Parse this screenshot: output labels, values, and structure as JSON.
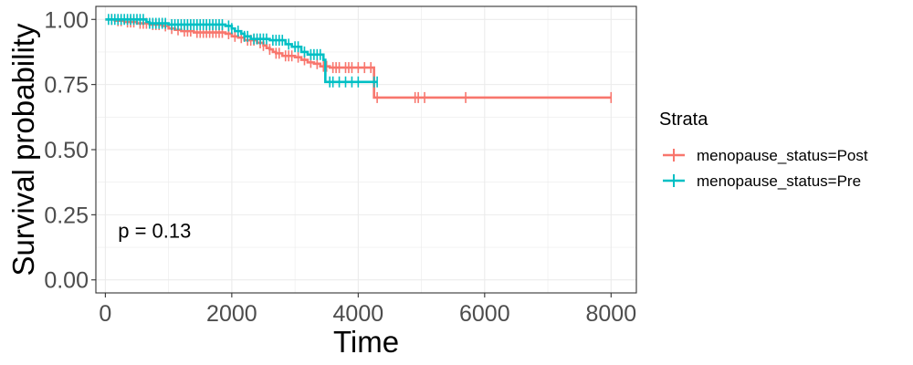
{
  "chart_data": {
    "type": "line",
    "subtype": "kaplan-meier step plot",
    "xlabel": "Time",
    "ylabel": "Survival probability",
    "xlim": [
      -150,
      8400
    ],
    "ylim": [
      -0.05,
      1.05
    ],
    "x_ticks": [
      0,
      2000,
      4000,
      6000,
      8000
    ],
    "y_ticks": [
      0.0,
      0.25,
      0.5,
      0.75,
      1.0
    ],
    "x_tick_labels": [
      "0",
      "2000",
      "4000",
      "6000",
      "8000"
    ],
    "y_tick_labels": [
      "0.00",
      "0.25",
      "0.50",
      "0.75",
      "1.00"
    ],
    "grid": true,
    "legend": {
      "title": "Strata",
      "position": "right"
    },
    "annotation": {
      "text": "p = 0.13",
      "x": 200,
      "y": 0.19
    },
    "series": [
      {
        "name": "menopause_status=Post",
        "color": "#F8766D",
        "steps": [
          [
            0,
            1.0
          ],
          [
            150,
            0.995
          ],
          [
            300,
            0.99
          ],
          [
            500,
            0.985
          ],
          [
            700,
            0.98
          ],
          [
            900,
            0.975
          ],
          [
            1000,
            0.965
          ],
          [
            1100,
            0.96
          ],
          [
            1200,
            0.955
          ],
          [
            1400,
            0.95
          ],
          [
            1900,
            0.945
          ],
          [
            2000,
            0.935
          ],
          [
            2100,
            0.93
          ],
          [
            2200,
            0.92
          ],
          [
            2400,
            0.91
          ],
          [
            2500,
            0.9
          ],
          [
            2550,
            0.89
          ],
          [
            2600,
            0.885
          ],
          [
            2650,
            0.875
          ],
          [
            2700,
            0.87
          ],
          [
            2800,
            0.86
          ],
          [
            3000,
            0.855
          ],
          [
            3100,
            0.845
          ],
          [
            3200,
            0.835
          ],
          [
            3300,
            0.83
          ],
          [
            3400,
            0.82
          ],
          [
            3550,
            0.815
          ],
          [
            4250,
            0.7
          ],
          [
            8000,
            0.7
          ]
        ],
        "censor_times": [
          100,
          200,
          250,
          350,
          400,
          450,
          550,
          600,
          650,
          750,
          800,
          850,
          950,
          1050,
          1150,
          1250,
          1300,
          1350,
          1450,
          1500,
          1550,
          1600,
          1650,
          1700,
          1750,
          1800,
          1850,
          1950,
          2050,
          2150,
          2250,
          2300,
          2350,
          2450,
          2500,
          2600,
          2700,
          2750,
          2850,
          2900,
          2950,
          3050,
          3150,
          3250,
          3350,
          3450,
          3500,
          3600,
          3650,
          3700,
          3800,
          3850,
          3900,
          4000,
          4100,
          4200,
          4300,
          4900,
          4950,
          5050,
          5700,
          8000
        ]
      },
      {
        "name": "menopause_status=Pre",
        "color": "#00BFC4",
        "steps": [
          [
            0,
            1.0
          ],
          [
            650,
            0.99
          ],
          [
            700,
            0.985
          ],
          [
            1000,
            0.98
          ],
          [
            1900,
            0.975
          ],
          [
            2000,
            0.965
          ],
          [
            2050,
            0.955
          ],
          [
            2150,
            0.945
          ],
          [
            2200,
            0.935
          ],
          [
            2300,
            0.925
          ],
          [
            2600,
            0.92
          ],
          [
            2850,
            0.905
          ],
          [
            2950,
            0.895
          ],
          [
            3100,
            0.875
          ],
          [
            3200,
            0.865
          ],
          [
            3450,
            0.845
          ],
          [
            3480,
            0.76
          ],
          [
            4300,
            0.76
          ]
        ],
        "censor_times": [
          50,
          100,
          150,
          200,
          250,
          300,
          350,
          400,
          450,
          500,
          550,
          600,
          700,
          750,
          800,
          850,
          900,
          950,
          1050,
          1100,
          1150,
          1200,
          1250,
          1300,
          1350,
          1400,
          1450,
          1500,
          1550,
          1600,
          1650,
          1700,
          1750,
          1800,
          1850,
          1950,
          2000,
          2100,
          2200,
          2250,
          2350,
          2400,
          2450,
          2500,
          2550,
          2650,
          2700,
          2750,
          2800,
          2900,
          3000,
          3050,
          3150,
          3250,
          3300,
          3350,
          3400,
          3550,
          3600,
          3700,
          3800,
          3900,
          4000,
          4250,
          4300
        ]
      }
    ]
  }
}
